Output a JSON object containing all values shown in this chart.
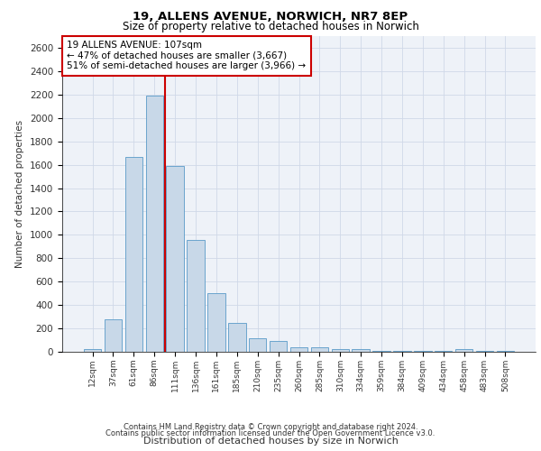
{
  "title1": "19, ALLENS AVENUE, NORWICH, NR7 8EP",
  "title2": "Size of property relative to detached houses in Norwich",
  "xlabel": "Distribution of detached houses by size in Norwich",
  "ylabel": "Number of detached properties",
  "categories": [
    "12sqm",
    "37sqm",
    "61sqm",
    "86sqm",
    "111sqm",
    "136sqm",
    "161sqm",
    "185sqm",
    "210sqm",
    "235sqm",
    "260sqm",
    "285sqm",
    "310sqm",
    "334sqm",
    "359sqm",
    "384sqm",
    "409sqm",
    "434sqm",
    "458sqm",
    "483sqm",
    "508sqm"
  ],
  "values": [
    20,
    280,
    1670,
    2190,
    1590,
    960,
    500,
    245,
    115,
    90,
    35,
    35,
    20,
    20,
    10,
    10,
    5,
    5,
    20,
    5,
    5
  ],
  "bar_color": "#c8d8e8",
  "bar_edge_color": "#5a9ac8",
  "vline_x_index": 3,
  "vline_color": "#cc0000",
  "annotation_box_text": "19 ALLENS AVENUE: 107sqm\n← 47% of detached houses are smaller (3,667)\n51% of semi-detached houses are larger (3,966) →",
  "ylim": [
    0,
    2700
  ],
  "yticks": [
    0,
    200,
    400,
    600,
    800,
    1000,
    1200,
    1400,
    1600,
    1800,
    2000,
    2200,
    2400,
    2600
  ],
  "grid_color": "#d0d8e8",
  "background_color": "#eef2f8",
  "footer1": "Contains HM Land Registry data © Crown copyright and database right 2024.",
  "footer2": "Contains public sector information licensed under the Open Government Licence v3.0."
}
